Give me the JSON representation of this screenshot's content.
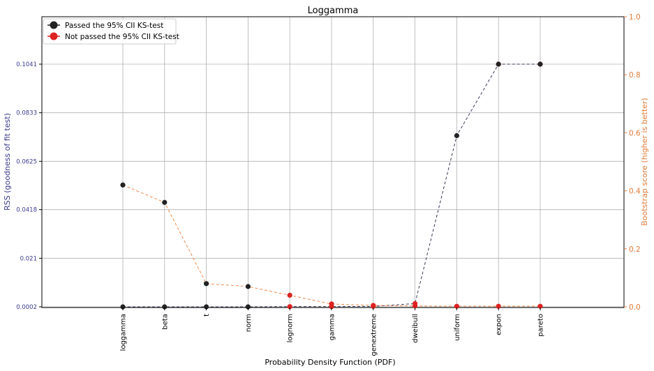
{
  "chart_data": {
    "type": "line",
    "title": "Loggamma",
    "xlabel": "Probability Density Function (PDF)",
    "ylabel_left": "RSS (goodness of fit test)",
    "ylabel_right": "Bootstrap score (higher is better)",
    "categories": [
      "loggamma",
      "beta",
      "t",
      "norm",
      "lognorm",
      "gamma",
      "genextreme",
      "dweibull",
      "uniform",
      "expon",
      "pareto"
    ],
    "y_left_ticks": [
      "0.0002",
      "0.021",
      "0.0418",
      "0.0625",
      "0.0833",
      "0.1041"
    ],
    "y_right_ticks": [
      "0.0",
      "0.2",
      "0.4",
      "0.6",
      "0.8",
      "1.0"
    ],
    "y_left_range": [
      0.0002,
      0.1041
    ],
    "y_right_range": [
      0.0,
      1.0
    ],
    "grid": true,
    "legend_position": "top-left",
    "series": [
      {
        "name": "Passed the 95% CII KS-test",
        "axis": "left",
        "color": "#222222",
        "values": [
          0.0002,
          0.0002,
          0.0002,
          0.0002,
          0.0003,
          0.0003,
          0.0004,
          0.0016,
          0.0735,
          0.1041,
          0.1041
        ]
      },
      {
        "name": "Not passed the 95% CII KS-test",
        "axis": "right",
        "color": "#dd2222",
        "line_color": "#f08a4b",
        "values": [
          0.42,
          0.36,
          0.08,
          0.07,
          0.04,
          0.01,
          0.005,
          0.003,
          0.002,
          0.002,
          0.002
        ]
      }
    ],
    "markers": {
      "black": [
        {
          "x": "loggamma",
          "axis": "right",
          "y": 0.42
        },
        {
          "x": "beta",
          "axis": "right",
          "y": 0.36
        },
        {
          "x": "t",
          "axis": "right",
          "y": 0.08
        },
        {
          "x": "norm",
          "axis": "right",
          "y": 0.07
        },
        {
          "x": "loggamma",
          "axis": "left",
          "y": 0.0002
        },
        {
          "x": "beta",
          "axis": "left",
          "y": 0.0002
        },
        {
          "x": "t",
          "axis": "left",
          "y": 0.0002
        },
        {
          "x": "norm",
          "axis": "left",
          "y": 0.0002
        },
        {
          "x": "uniform",
          "axis": "left",
          "y": 0.0735
        },
        {
          "x": "expon",
          "axis": "left",
          "y": 0.1041
        },
        {
          "x": "pareto",
          "axis": "left",
          "y": 0.1041
        }
      ],
      "red": [
        {
          "x": "lognorm",
          "axis": "right",
          "y": 0.04
        },
        {
          "x": "gamma",
          "axis": "right",
          "y": 0.01
        },
        {
          "x": "genextreme",
          "axis": "right",
          "y": 0.005
        },
        {
          "x": "dweibull",
          "axis": "right",
          "y": 0.003
        },
        {
          "x": "uniform",
          "axis": "right",
          "y": 0.002
        },
        {
          "x": "expon",
          "axis": "right",
          "y": 0.002
        },
        {
          "x": "pareto",
          "axis": "right",
          "y": 0.002
        },
        {
          "x": "lognorm",
          "axis": "left",
          "y": 0.0003
        },
        {
          "x": "gamma",
          "axis": "left",
          "y": 0.0003
        },
        {
          "x": "genextreme",
          "axis": "left",
          "y": 0.0004
        },
        {
          "x": "dweibull",
          "axis": "left",
          "y": 0.0016
        },
        {
          "x": "expon",
          "axis": "left",
          "y": 0.1041
        },
        {
          "x": "pareto",
          "axis": "left",
          "y": 0.1041
        }
      ]
    },
    "colors": {
      "left_axis_text": "#3b3b8f",
      "right_axis_text": "#e07b39",
      "grid": "#b0b0b0"
    }
  }
}
